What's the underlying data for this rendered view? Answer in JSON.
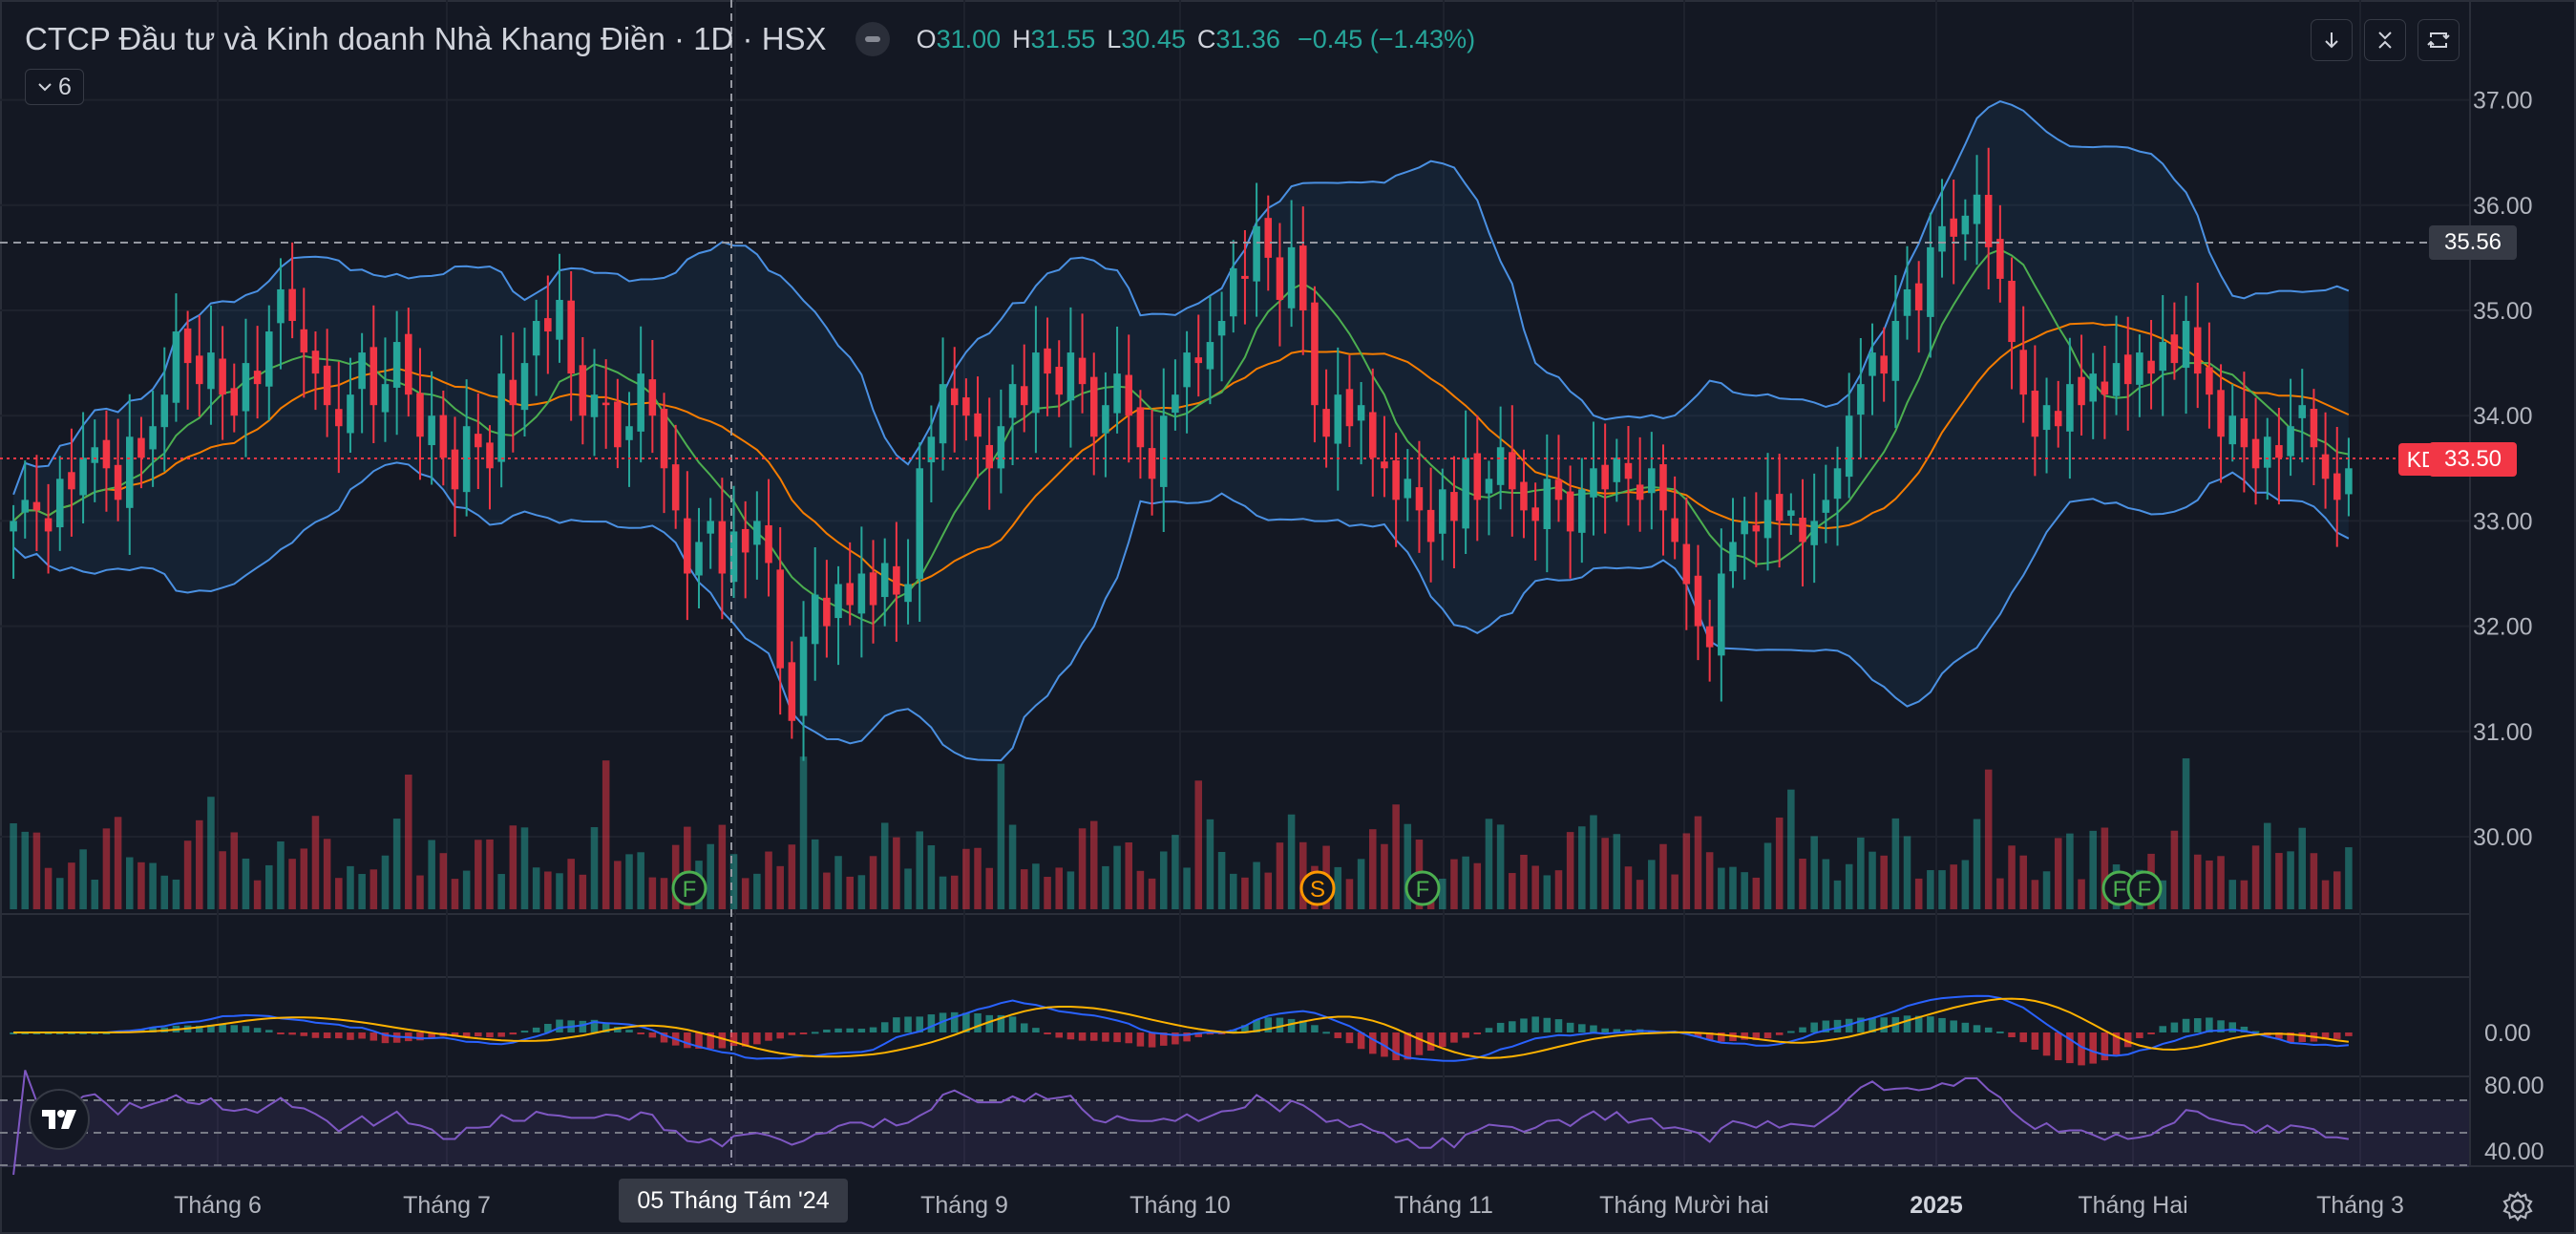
{
  "header": {
    "symbol_title": "CTCP Đầu tư và Kinh doanh Nhà Khang Điền · 1D · HSX",
    "ohlc": {
      "o_label": "O",
      "o": "31.00",
      "h_label": "H",
      "h": "31.55",
      "l_label": "L",
      "l": "30.45",
      "c_label": "C",
      "c": "31.36",
      "change": "−0.45 (−1.43%)"
    },
    "indicators_toggle": "6"
  },
  "toolbar": {
    "download_icon": "arrow-down-icon",
    "collapse_icon": "collapse-icon",
    "fullscreen_icon": "fullscreen-icon"
  },
  "price_axis": {
    "ticks": [
      "37.00",
      "36.00",
      "35.00",
      "34.00",
      "33.00",
      "32.00",
      "31.00",
      "30.00"
    ],
    "crosshair_price": "35.56",
    "last_price": "33.50",
    "symbol_tag": "KDH"
  },
  "macd_axis": {
    "ticks": [
      "0.00"
    ]
  },
  "rsi_axis": {
    "ticks": [
      "80.00",
      "40.00"
    ]
  },
  "time_axis": {
    "labels": [
      "Tháng 6",
      "Tháng 7",
      "Tháng 9",
      "Tháng 10",
      "Tháng 11",
      "Tháng Mười hai",
      "2025",
      "Tháng Hai",
      "Tháng 3"
    ],
    "crosshair_date": "05 Tháng Tám '24"
  },
  "event_markers": [
    "F",
    "S",
    "F",
    "F",
    "F"
  ],
  "colors": {
    "up": "#26a69a",
    "down": "#f23645",
    "bb": "#4a90e2",
    "ma_fast": "#4caf50",
    "ma_slow": "#f57c00",
    "macd": "#2962ff",
    "signal": "#ffb300",
    "rsi": "#7e57c2"
  },
  "chart_data": [
    {
      "type": "candlestick",
      "title": "CTCP Đầu tư và Kinh doanh Nhà Khang Điền · 1D · HSX",
      "ylim": [
        29.5,
        37.3
      ],
      "x_range": [
        "2024-05",
        "2025-03"
      ],
      "indicators": [
        "Bollinger Bands",
        "MA fast",
        "MA slow",
        "Volume"
      ],
      "close_series": [
        33.0,
        33.2,
        33.1,
        32.9,
        33.4,
        33.3,
        33.6,
        33.7,
        33.5,
        33.2,
        33.8,
        33.6,
        33.9,
        34.2,
        34.8,
        34.5,
        34.3,
        34.6,
        34.2,
        34.0,
        34.5,
        34.3,
        34.8,
        35.2,
        34.9,
        34.6,
        34.4,
        34.1,
        33.9,
        34.2,
        34.6,
        34.1,
        34.3,
        34.7,
        34.2,
        33.8,
        34.0,
        33.6,
        33.3,
        33.9,
        33.7,
        33.5,
        34.4,
        34.1,
        34.5,
        34.9,
        34.8,
        35.1,
        34.4,
        34.0,
        34.2,
        34.1,
        33.7,
        33.9,
        34.4,
        34.0,
        33.5,
        33.1,
        32.5,
        32.8,
        33.0,
        32.5,
        32.9,
        32.7,
        33.0,
        32.6,
        31.6,
        31.1,
        31.9,
        32.3,
        32.0,
        32.4,
        32.2,
        32.5,
        32.2,
        32.6,
        32.3,
        32.4,
        33.5,
        33.8,
        34.3,
        34.1,
        34.0,
        33.8,
        33.5,
        33.9,
        34.3,
        34.1,
        34.6,
        34.4,
        34.2,
        34.6,
        34.3,
        33.8,
        34.1,
        34.4,
        34.0,
        33.7,
        33.4,
        34.0,
        34.2,
        34.6,
        34.5,
        34.7,
        34.9,
        35.4,
        35.3,
        35.8,
        35.5,
        35.1,
        35.6,
        35.0,
        34.1,
        33.8,
        34.2,
        33.9,
        34.1,
        33.6,
        33.5,
        33.2,
        33.4,
        33.1,
        32.8,
        33.3,
        33.0,
        33.6,
        33.2,
        33.4,
        33.7,
        33.3,
        33.1,
        33.0,
        33.4,
        33.2,
        32.9,
        33.3,
        33.5,
        33.3,
        33.6,
        33.4,
        33.2,
        33.5,
        33.1,
        32.8,
        32.4,
        32.0,
        31.8,
        32.5,
        32.8,
        33.0,
        32.9,
        33.2,
        33.0,
        33.1,
        32.8,
        33.0,
        33.2,
        33.5,
        34.0,
        34.3,
        34.6,
        34.4,
        34.9,
        35.2,
        35.0,
        35.6,
        35.8,
        35.7,
        35.9,
        36.1,
        35.6,
        35.3,
        34.7,
        34.2,
        33.8,
        34.1,
        33.9,
        34.3,
        34.1,
        34.4,
        34.2,
        34.5,
        34.3,
        34.6,
        34.4,
        34.7,
        34.5,
        34.9,
        34.4,
        34.2,
        33.8,
        34.0,
        33.7,
        33.5,
        33.8,
        33.6,
        33.9,
        34.1,
        33.7,
        33.4,
        33.2,
        33.5
      ]
    },
    {
      "type": "bar",
      "title": "Volume"
    },
    {
      "type": "line",
      "title": "MACD",
      "zero_line": 0.0
    },
    {
      "type": "line",
      "title": "RSI",
      "ylim": [
        20,
        95
      ],
      "bands": [
        80,
        40
      ]
    }
  ]
}
